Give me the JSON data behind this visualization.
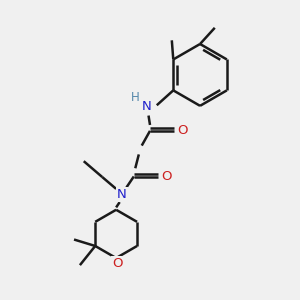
{
  "bg_color": "#f0f0f0",
  "bond_color": "#1a1a1a",
  "N_color": "#2020cc",
  "O_color": "#cc2020",
  "H_color": "#5588aa",
  "bond_width": 1.8,
  "figsize": [
    3.0,
    3.0
  ],
  "dpi": 100,
  "xlim": [
    0,
    10
  ],
  "ylim": [
    0,
    10
  ]
}
